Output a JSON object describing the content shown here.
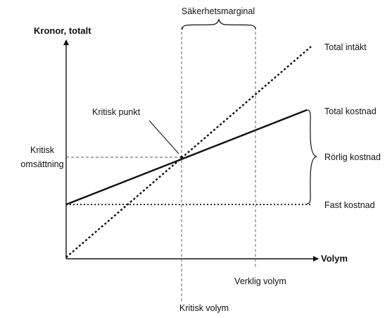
{
  "labels": {
    "y_axis": "Kronor, totalt",
    "x_axis": "Volym",
    "safety_margin": "Säkerhetsmarginal",
    "total_revenue": "Total intäkt",
    "total_cost": "Total kostnad",
    "variable_cost": "Rörlig kostnad",
    "fixed_cost": "Fast kostnad",
    "critical_point": "Kritisk punkt",
    "critical_turnover_line1": "Kritisk",
    "critical_turnover_line2": "omsättning",
    "actual_volume": "Verklig volym",
    "critical_volume": "Kritisk volym"
  },
  "colors": {
    "ink": "#111111",
    "guide": "#555555"
  }
}
